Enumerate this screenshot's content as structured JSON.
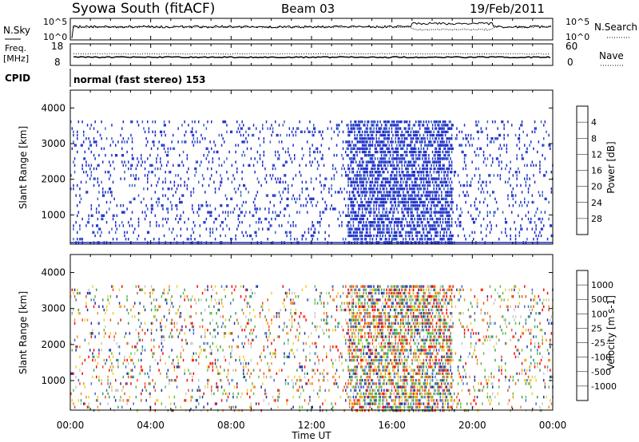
{
  "header": {
    "station": "Syowa South (fitACF)",
    "beam": "Beam 03",
    "date": "19/Feb/2011"
  },
  "nsky_panel": {
    "label": "N.Sky",
    "right_label": "N.Search",
    "left_ticks": [
      "10^5",
      "10^0"
    ],
    "right_ticks": [
      "10^5",
      "10^0"
    ]
  },
  "freq_panel": {
    "label_line1": "Freq.",
    "label_line2": "[MHz]",
    "left_ticks": [
      "18",
      "8"
    ],
    "right_ticks": [
      "60",
      "0"
    ],
    "right_label": "Nave"
  },
  "cpid_panel": {
    "label": "CPID",
    "text": "normal (fast stereo) 153"
  },
  "x_axis": {
    "label": "Time UT",
    "ticks": [
      "00:00",
      "04:00",
      "08:00",
      "12:00",
      "16:00",
      "20:00",
      "00:00"
    ]
  },
  "chart_data": [
    {
      "type": "heatmap",
      "name": "power",
      "xlabel": "Time UT",
      "ylabel": "Slant Range [km]",
      "y_ticks": [
        "1000",
        "2000",
        "3000",
        "4000"
      ],
      "xlim": [
        0,
        24
      ],
      "ylim": [
        180,
        4500
      ],
      "colorbar": {
        "label": "Power [dB]",
        "tick_labels": [
          "4",
          "8",
          "12",
          "16",
          "20",
          "24",
          "28"
        ],
        "colors": [
          "#0000ff",
          "#3264c8",
          "#40a080",
          "#6cc040",
          "#f0d020",
          "#f89028",
          "#f04418",
          "#ff0000"
        ]
      },
      "bands": [
        {
          "t_start": 0,
          "t_end": 24,
          "r_start": 200,
          "r_end": 3650,
          "density": "low",
          "level": "0-8 dB"
        },
        {
          "t_start": 13.8,
          "t_end": 19.0,
          "r_start": 200,
          "r_end": 3650,
          "density": "high",
          "level": "0-8 dB"
        }
      ]
    },
    {
      "type": "heatmap",
      "name": "velocity",
      "xlabel": "Time UT",
      "ylabel": "Slant Range [km]",
      "y_ticks": [
        "1000",
        "2000",
        "3000",
        "4000"
      ],
      "xlim": [
        0,
        24
      ],
      "ylim": [
        180,
        4500
      ],
      "colorbar": {
        "label": "Velocity [m s-1]",
        "tick_labels": [
          "1000",
          "500",
          "100",
          "25",
          "-25",
          "-100",
          "-500",
          "-1000"
        ],
        "colors": [
          "#2030a0",
          "#3a70c8",
          "#40a060",
          "#60c040",
          "#c8c8c8",
          "#f0d020",
          "#f09020",
          "#f05018",
          "#ff0000"
        ]
      },
      "bands": [
        {
          "t_start": 0,
          "t_end": 24,
          "r_start": 200,
          "r_end": 3650,
          "density": "low",
          "level": "mixed"
        },
        {
          "t_start": 13.8,
          "t_end": 19.0,
          "r_start": 200,
          "r_end": 3650,
          "density": "high",
          "level": "mixed"
        }
      ]
    }
  ]
}
